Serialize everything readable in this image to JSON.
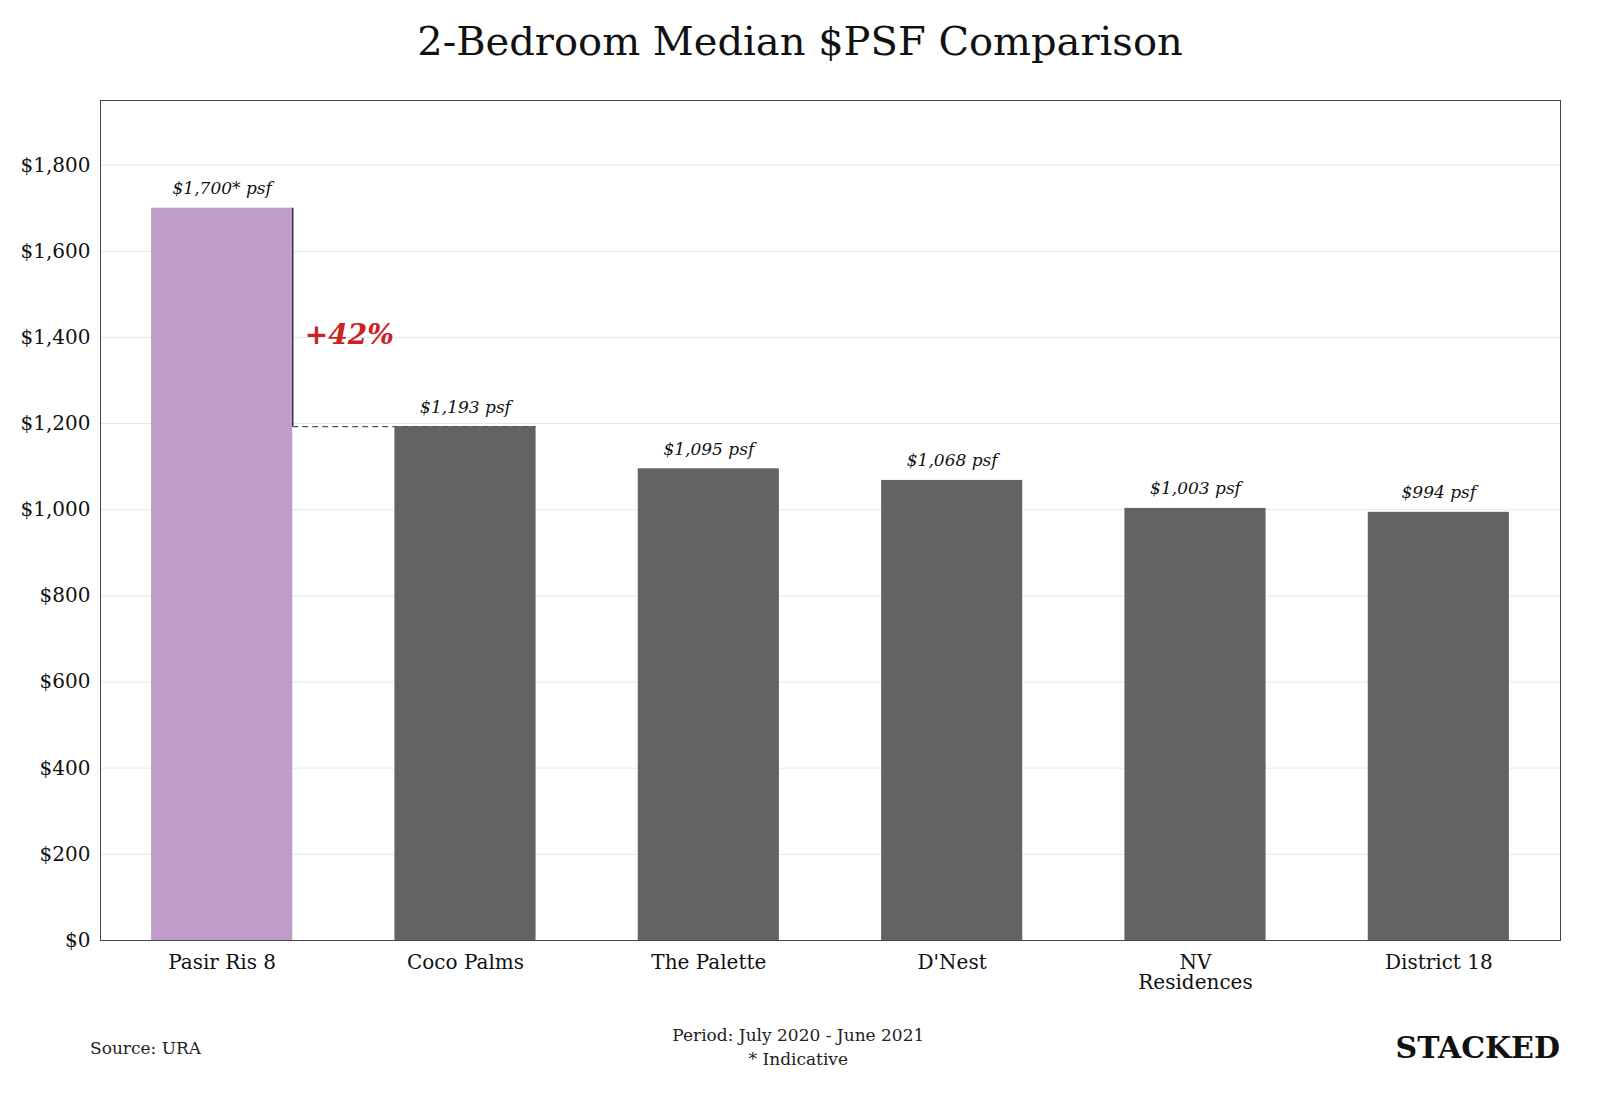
{
  "chart_data": {
    "type": "bar",
    "title": "2-Bedroom Median $PSF Comparison",
    "categories": [
      "Pasir Ris 8",
      "Coco Palms",
      "The Palette",
      "D'Nest",
      "NV\nResidences",
      "District 18"
    ],
    "values": [
      1700,
      1193,
      1095,
      1068,
      1003,
      994
    ],
    "value_labels": [
      "$1,700* psf",
      "$1,193 psf",
      "$1,095 psf",
      "$1,068 psf",
      "$1,003 psf",
      "$994 psf"
    ],
    "data_labels": true,
    "colors": [
      "#c09cc8",
      "#636363",
      "#636363",
      "#636363",
      "#636363",
      "#636363"
    ],
    "ylim": [
      0,
      1950
    ],
    "yticks": [
      {
        "value": 0,
        "label": "$0"
      },
      {
        "value": 200,
        "label": "$200"
      },
      {
        "value": 400,
        "label": "$400"
      },
      {
        "value": 600,
        "label": "$600"
      },
      {
        "value": 800,
        "label": "$800"
      },
      {
        "value": 1000,
        "label": "$1,000"
      },
      {
        "value": 1200,
        "label": "$1,200"
      },
      {
        "value": 1400,
        "label": "$1,400"
      },
      {
        "value": 1600,
        "label": "$1,600"
      },
      {
        "value": 1800,
        "label": "$1,800"
      }
    ],
    "grid": true,
    "annotations": [
      {
        "text": "+42%",
        "color": "#cc2222",
        "y": 1193
      }
    ],
    "source": "Source: URA",
    "notes": [
      "Period: July 2020 - June 2021",
      "* Indicative"
    ],
    "brand": "STACKED"
  }
}
